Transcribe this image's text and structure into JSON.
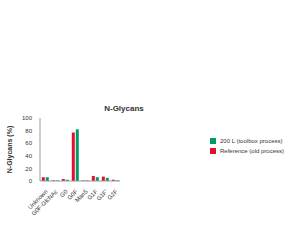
{
  "chart_data": {
    "type": "bar",
    "title": "N-Glycans",
    "y_label": "N-Glycans (%)",
    "categories": [
      "Unknown",
      "G0F-GlcNAc",
      "G0",
      "G0F",
      "Man5",
      "G1F",
      "G1F'",
      "G2F"
    ],
    "series": [
      {
        "name": "Reference (old process)",
        "color": "#e0102f",
        "values": [
          6,
          1,
          3,
          77,
          1,
          8,
          7,
          2
        ]
      },
      {
        "name": "200 L (toolbox process)",
        "color": "#009a6b",
        "values": [
          6,
          1,
          2,
          82,
          1,
          6,
          5,
          1
        ]
      }
    ],
    "ylim": [
      0,
      100
    ],
    "yticks": [
      0,
      20,
      40,
      60,
      80,
      100
    ],
    "grid": false,
    "legend": "right"
  }
}
